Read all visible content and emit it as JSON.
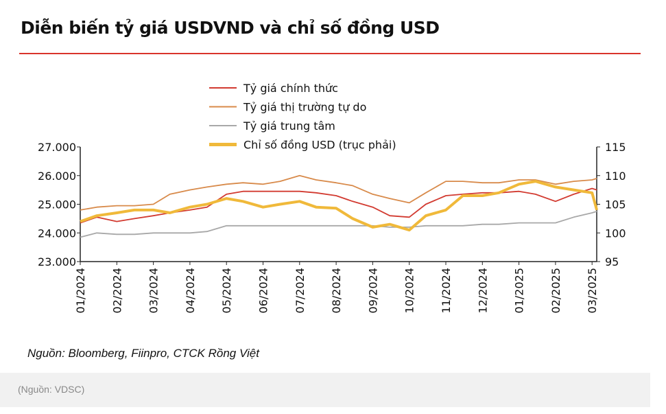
{
  "title": "Diễn biến tỷ giá USDVND và chỉ số đồng USD",
  "source": "Nguồn: Bloomberg, Fiinpro, CTCK Rồng Việt",
  "footer": "(Nguồn: VDSC)",
  "chart_data": {
    "type": "line",
    "title": "Diễn biến tỷ giá USDVND và chỉ số đồng USD",
    "x_ticks": [
      "01/2024",
      "02/2024",
      "03/2024",
      "04/2024",
      "05/2024",
      "06/2024",
      "07/2024",
      "08/2024",
      "09/2024",
      "10/2024",
      "11/2024",
      "12/2024",
      "01/2025",
      "02/2025",
      "03/2025"
    ],
    "y_left": {
      "range": [
        23000,
        27000
      ],
      "ticks": [
        "23.000",
        "24.000",
        "25.000",
        "26.000",
        "27.000"
      ]
    },
    "y_right": {
      "range": [
        95,
        115
      ],
      "ticks": [
        "95",
        "100",
        "105",
        "110",
        "115"
      ]
    },
    "grid": false,
    "legend_position": "top-center",
    "x": [
      "2024-01-01",
      "2024-01-15",
      "2024-02-01",
      "2024-02-15",
      "2024-03-01",
      "2024-03-15",
      "2024-04-01",
      "2024-04-15",
      "2024-05-01",
      "2024-05-15",
      "2024-06-01",
      "2024-06-15",
      "2024-07-01",
      "2024-07-15",
      "2024-08-01",
      "2024-08-15",
      "2024-09-01",
      "2024-09-15",
      "2024-10-01",
      "2024-10-15",
      "2024-11-01",
      "2024-11-15",
      "2024-12-01",
      "2024-12-15",
      "2025-01-01",
      "2025-01-15",
      "2025-02-01",
      "2025-02-15",
      "2025-03-01",
      "2025-03-05"
    ],
    "series": [
      {
        "name": "Tỷ giá chính thức",
        "axis": "left",
        "color": "#d23a30",
        "values": [
          24350,
          24550,
          24400,
          24500,
          24600,
          24700,
          24800,
          24900,
          25350,
          25450,
          25450,
          25450,
          25450,
          25400,
          25300,
          25100,
          24900,
          24600,
          24550,
          25000,
          25300,
          25350,
          25400,
          25400,
          25450,
          25350,
          25100,
          25350,
          25550,
          25500
        ]
      },
      {
        "name": "Tỷ giá thị trường tự do",
        "axis": "left",
        "color": "#d88a4a",
        "values": [
          24800,
          24900,
          24950,
          24950,
          25000,
          25350,
          25500,
          25600,
          25700,
          25750,
          25700,
          25800,
          26000,
          25850,
          25750,
          25650,
          25350,
          25200,
          25050,
          25400,
          25800,
          25800,
          25750,
          25750,
          25850,
          25850,
          25700,
          25800,
          25850,
          25900
        ]
      },
      {
        "name": "Tỷ giá trung tâm",
        "axis": "left",
        "color": "#a8a8a8",
        "values": [
          23850,
          24000,
          23950,
          23950,
          24000,
          24000,
          24000,
          24050,
          24250,
          24250,
          24250,
          24250,
          24250,
          24250,
          24250,
          24250,
          24250,
          24200,
          24200,
          24250,
          24250,
          24250,
          24300,
          24300,
          24350,
          24350,
          24350,
          24550,
          24700,
          24750
        ]
      },
      {
        "name": "Chỉ số đồng USD (trục phải)",
        "axis": "right",
        "color": "#f0b93a",
        "values": [
          102,
          103,
          103.5,
          104,
          104,
          103.5,
          104.5,
          105,
          106,
          105.5,
          104.5,
          105,
          105.5,
          104.5,
          104.3,
          102.5,
          101,
          101.5,
          100.5,
          103,
          104,
          106.5,
          106.5,
          107,
          108.5,
          109,
          108,
          107.5,
          107,
          104
        ]
      }
    ]
  }
}
